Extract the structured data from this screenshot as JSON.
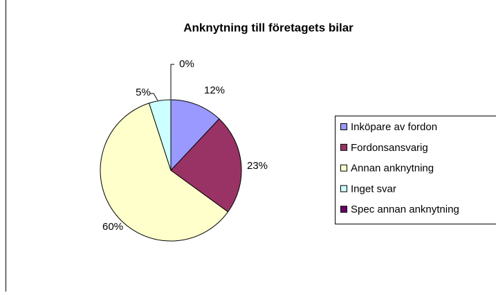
{
  "chart_data": {
    "type": "pie",
    "title": "Anknytning till företagets bilar",
    "categories": [
      "Inköpare av fordon",
      "Fordonsansvarig",
      "Annan anknytning",
      "Inget svar",
      "Spec annan anknytning"
    ],
    "values": [
      12,
      23,
      60,
      5,
      0
    ],
    "value_labels": [
      "12%",
      "23%",
      "60%",
      "5%",
      "0%"
    ],
    "colors": [
      "#9999ff",
      "#993366",
      "#ffffcc",
      "#ccffff",
      "#660066"
    ],
    "legend": "right"
  }
}
